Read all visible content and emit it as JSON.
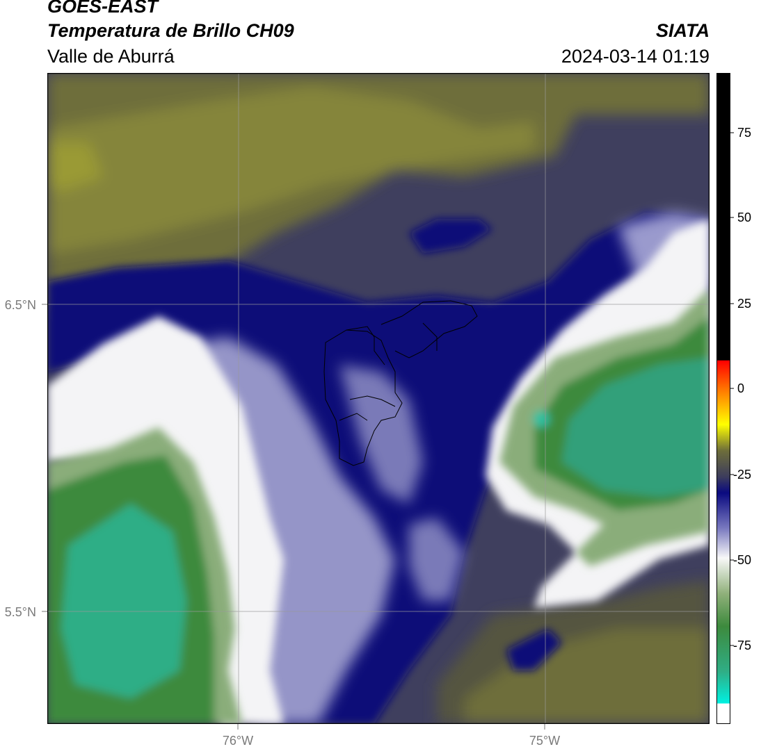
{
  "header": {
    "satellite": "GOES-EAST",
    "product": "Temperatura de Brillo CH09",
    "region": "Valle de Aburrá",
    "agency": "SIATA",
    "datetime": "2024-03-14 01:19"
  },
  "map": {
    "lon_labels": [
      "76°W",
      "75°W"
    ],
    "lat_labels": [
      "6.5°N",
      "5.5°N"
    ],
    "colors": {
      "olive": "#6f6f37",
      "dark_gray_blue": "#3d3d5c",
      "navy": "#0a0a7a",
      "blue_white": "#9a9acc",
      "white": "#f2f2f2",
      "light_green": "#8fb07a",
      "green": "#3d8a3d",
      "teal": "#2fb088"
    }
  },
  "colorbar": {
    "ticks": [
      "75",
      "50",
      "25",
      "0",
      "-25",
      "-50",
      "-75"
    ]
  }
}
